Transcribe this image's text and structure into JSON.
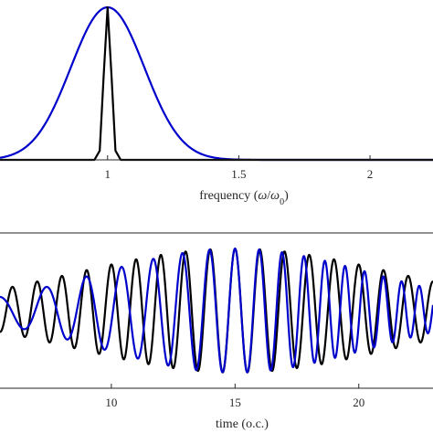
{
  "chart_data": [
    {
      "type": "line",
      "xlabel_prefix": "frequency (",
      "xlabel_omega": "ω",
      "xlabel_slash": "/",
      "xlabel_omega0": "ω",
      "xlabel_sub": "0",
      "xlabel_suffix": ")",
      "xlim": [
        0.59,
        2.24
      ],
      "ylim": [
        0,
        1.0
      ],
      "xticks": [
        1,
        1.5,
        2
      ],
      "xtick_labels": [
        "1",
        "1.5",
        "2"
      ],
      "grid": false,
      "series": [
        {
          "color": "#0000cc",
          "shape": "gaussian",
          "center": 1.0,
          "width": 0.14,
          "peak": 1.0
        },
        {
          "color": "#000000",
          "shape": "narrow-peak",
          "x": [
            0.59,
            0.95,
            0.97,
            0.985,
            1.0,
            1.015,
            1.03,
            1.05,
            2.24
          ],
          "y": [
            0,
            0,
            0.06,
            0.55,
            1.0,
            0.55,
            0.06,
            0,
            0
          ]
        }
      ]
    },
    {
      "type": "line",
      "xlabel": "time (o.c.)",
      "xlim": [
        5.5,
        23.0
      ],
      "ylim": [
        -1.15,
        1.15
      ],
      "xticks": [
        10,
        15,
        20
      ],
      "xtick_labels": [
        "10",
        "15",
        "20"
      ],
      "grid": false,
      "series": [
        {
          "color": "#000000",
          "shape": "chirped-pulse",
          "center": 15.0,
          "sigma": 6.5,
          "amplitude": 1.0,
          "frequency": 1.0,
          "chirp": 0.0
        },
        {
          "color": "#0000cc",
          "shape": "chirped-pulse",
          "center": 15.0,
          "sigma": 5.5,
          "amplitude": 1.0,
          "frequency": 1.0,
          "chirp": 0.028
        }
      ]
    }
  ]
}
